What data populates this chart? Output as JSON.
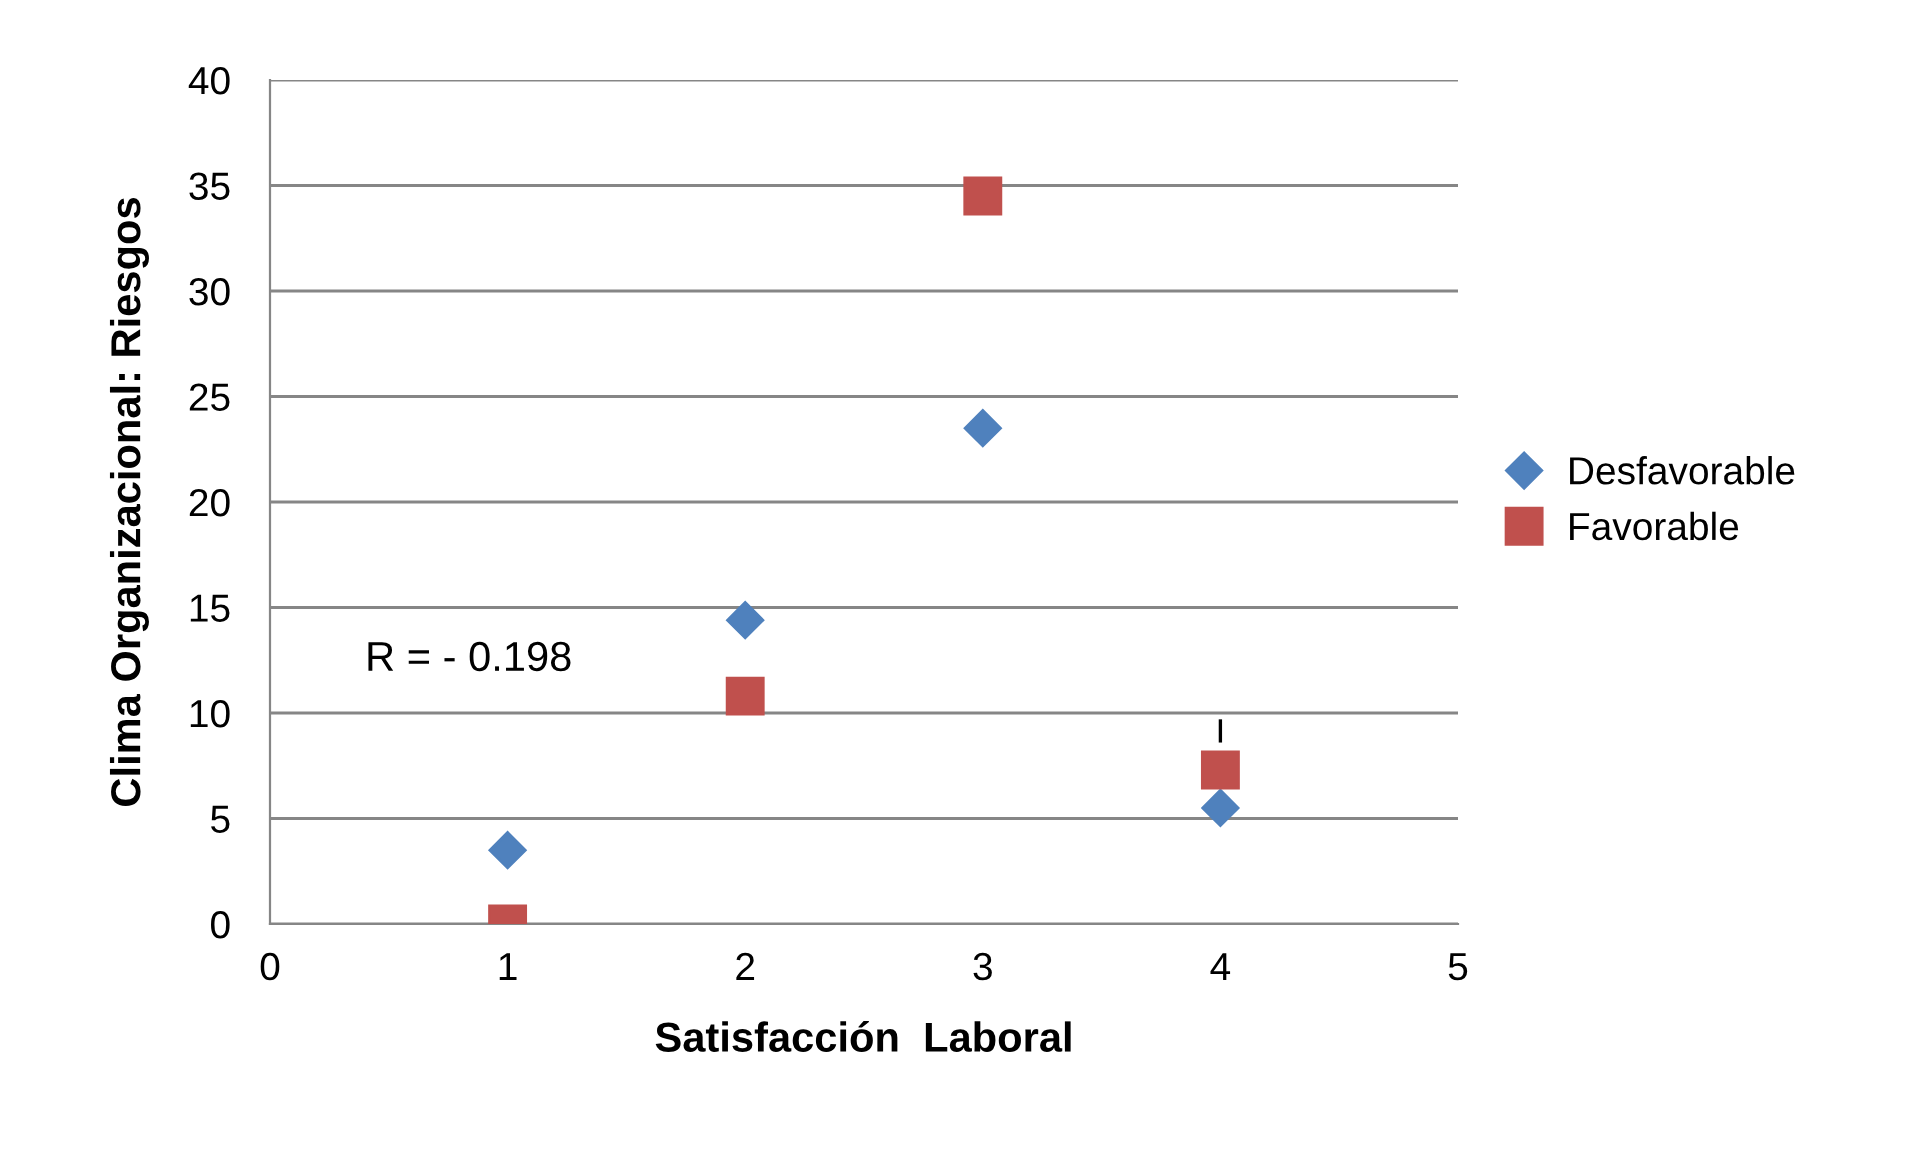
{
  "chart_data": {
    "type": "scatter",
    "xlabel": "Satisfacción  Laboral",
    "ylabel": "Clima Organizacional: Riesgos",
    "x": [
      1,
      2,
      3,
      4
    ],
    "series": [
      {
        "name": "Desfavorable",
        "color": "#4f81bd",
        "marker": "diamond",
        "values": [
          3.5,
          14.4,
          23.5,
          5.5
        ]
      },
      {
        "name": "Favorable",
        "color": "#c0504d",
        "marker": "square",
        "values": [
          0,
          10.8,
          34.5,
          7.3
        ],
        "errors": [
          null,
          null,
          null,
          [
            8.6,
            9.7
          ]
        ]
      }
    ],
    "xlim": [
      0,
      5
    ],
    "xticks": [
      0,
      1,
      2,
      3,
      4,
      5
    ],
    "ylim": [
      0,
      40
    ],
    "yticks": [
      0,
      5,
      10,
      15,
      20,
      25,
      30,
      35,
      40
    ],
    "grid": "y",
    "legend": "right",
    "annotations": [
      "R = - 0.198"
    ]
  }
}
